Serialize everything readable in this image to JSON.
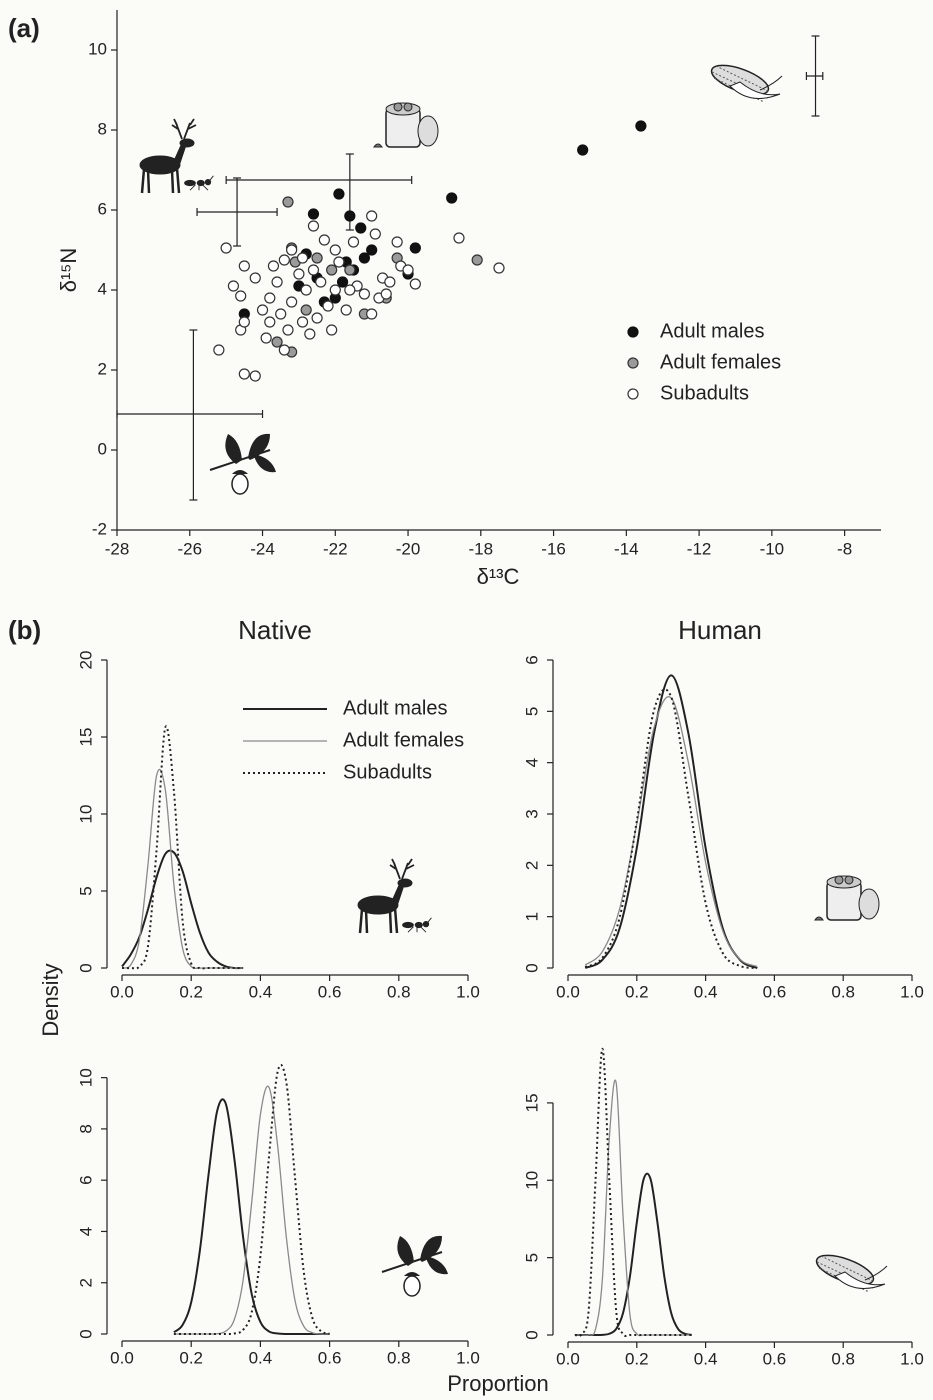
{
  "chart_data": [
    {
      "type": "scatter",
      "panel_label": "(a)",
      "x_label": "δ¹³C",
      "y_label": "δ¹⁵N",
      "xlim": [
        -28,
        -7
      ],
      "ylim": [
        -2,
        11
      ],
      "xticks": [
        -28,
        -26,
        -24,
        -22,
        -20,
        -18,
        -16,
        -14,
        -12,
        -10,
        -8
      ],
      "yticks": [
        -2,
        0,
        2,
        4,
        6,
        8,
        10
      ],
      "series": [
        {
          "name": "Adult males",
          "color": "#111111",
          "edge": "#111111",
          "x": [
            -15.2,
            -13.6,
            -18.8,
            -21.9,
            -22.6,
            -21.6,
            -21.3,
            -22.8,
            -19.8,
            -20,
            -24.5,
            -23,
            -22.3,
            -21.8,
            -21.5,
            -21.2,
            -21,
            -22,
            -21.7,
            -22.5
          ],
          "y": [
            7.5,
            8.1,
            6.3,
            6.4,
            5.9,
            5.85,
            5.55,
            4.9,
            5.05,
            4.4,
            3.4,
            4.1,
            3.7,
            4.2,
            4.5,
            4.8,
            5,
            3.8,
            4.7,
            4.3
          ]
        },
        {
          "name": "Adult females",
          "color": "#9a9a9a",
          "edge": "#333333",
          "x": [
            -23.3,
            -18.1,
            -23.2,
            -23.1,
            -22.5,
            -23.6,
            -23.2,
            -21.6,
            -20.6,
            -21.2,
            -22.1,
            -22.8,
            -20.3
          ],
          "y": [
            6.2,
            4.75,
            5.05,
            4.7,
            4.8,
            2.7,
            2.45,
            4.5,
            3.8,
            3.4,
            4.5,
            3.5,
            4.8
          ]
        },
        {
          "name": "Subadults",
          "color": "#ffffff",
          "edge": "#333333",
          "x": [
            -17.5,
            -18.6,
            -25.2,
            -24.5,
            -24.2,
            -24.6,
            -24.5,
            -24.5,
            -25,
            -24.8,
            -24.6,
            -24.2,
            -24,
            -23.8,
            -23.8,
            -23.6,
            -23.4,
            -23.5,
            -23.3,
            -23.2,
            -23,
            -22.9,
            -22.8,
            -22.6,
            -22.5,
            -22.4,
            -22.3,
            -22.2,
            -22,
            -22,
            -21.9,
            -21.7,
            -21.5,
            -21.4,
            -21.2,
            -21,
            -20.9,
            -20.7,
            -20.5,
            -20.3,
            -20.2,
            -20,
            -19.8,
            -21,
            -22.6,
            -23.2,
            -23.9,
            -23.4,
            -22.7,
            -22.1,
            -20.8,
            -21.6,
            -23.7,
            -22.9,
            -20.6
          ],
          "y": [
            4.55,
            5.3,
            2.5,
            1.9,
            1.85,
            3.0,
            3.2,
            4.6,
            5.05,
            4.1,
            3.85,
            4.3,
            3.5,
            3.2,
            3.8,
            4.2,
            4.75,
            3.4,
            3.0,
            3.7,
            4.4,
            3.2,
            4.0,
            4.5,
            3.3,
            4.2,
            5.25,
            3.6,
            4.0,
            5.0,
            4.7,
            3.5,
            5.2,
            4.1,
            3.9,
            3.4,
            5.4,
            4.3,
            4.2,
            5.2,
            4.6,
            4.5,
            4.15,
            5.85,
            5.6,
            5.0,
            2.8,
            2.5,
            2.9,
            3.0,
            3.8,
            4.0,
            4.6,
            4.8,
            3.9
          ]
        }
      ],
      "error_bars": [
        {
          "x": -24.7,
          "y": 5.95,
          "xmin": -25.8,
          "xmax": -23.6,
          "ymin": 5.1,
          "ymax": 6.8
        },
        {
          "x": -21.6,
          "y": 6.75,
          "xmin": -25,
          "xmax": -19.9,
          "ymin": 5.5,
          "ymax": 7.4
        },
        {
          "x": -8.8,
          "y": 9.35,
          "xmin": -9.05,
          "xmax": -8.6,
          "ymin": 8.35,
          "ymax": 10.35
        },
        {
          "x": -25.9,
          "y": 0.9,
          "xmin": -28,
          "xmax": -24,
          "ymin": -1.25,
          "ymax": 3.0
        }
      ]
    },
    {
      "type": "line",
      "title": "Native",
      "xlim": [
        0,
        1
      ],
      "ylim": [
        0,
        20
      ],
      "xticks": [
        {
          "value": 0,
          "label": "0.0"
        },
        0.2,
        0.4,
        0.6,
        0.8,
        {
          "value": 1,
          "label": "1.0"
        }
      ],
      "yticks": [
        0,
        5,
        10,
        15,
        20
      ],
      "x": [
        0,
        0.025,
        0.05,
        0.075,
        0.1,
        0.125,
        0.15,
        0.175,
        0.2,
        0.225,
        0.25,
        0.275,
        0.3,
        0.325,
        0.35
      ],
      "series": [
        {
          "name": "Adult males",
          "color": "#222222",
          "style": "solid",
          "width": 2,
          "values": [
            0.1,
            0.87,
            2.0,
            3.8,
            5.9,
            7.4,
            7.5,
            6.3,
            4.2,
            2.3,
            1.0,
            0.4,
            0.1,
            0,
            0
          ]
        },
        {
          "name": "Adult females",
          "color": "#8a8a8a",
          "style": "solid",
          "width": 1.3,
          "values": [
            0,
            0.2,
            1.8,
            6.7,
            12.5,
            11.6,
            5.4,
            1.3,
            0.1,
            0,
            0,
            0,
            0,
            0,
            0
          ]
        },
        {
          "name": "Subadults",
          "color": "#222222",
          "style": "dotted",
          "width": 2,
          "values": [
            0,
            0,
            0.1,
            1.4,
            7.7,
            15.6,
            11.5,
            3.1,
            0.3,
            0,
            0,
            0,
            0,
            0,
            0
          ]
        }
      ]
    },
    {
      "type": "line",
      "title": "Human",
      "xlim": [
        0,
        1
      ],
      "ylim": [
        0,
        6
      ],
      "xticks": [
        {
          "value": 0,
          "label": "0.0"
        },
        0.2,
        0.4,
        0.6,
        0.8,
        {
          "value": 1,
          "label": "1.0"
        }
      ],
      "yticks": [
        0,
        1,
        2,
        3,
        4,
        5,
        6
      ],
      "x": [
        0.05,
        0.1,
        0.15,
        0.2,
        0.25,
        0.3,
        0.35,
        0.4,
        0.45,
        0.5,
        0.55
      ],
      "series": [
        {
          "color": "#222222",
          "style": "solid",
          "width": 2,
          "values": [
            0,
            0.16,
            0.77,
            2.34,
            4.57,
            5.7,
            4.57,
            2.34,
            0.77,
            0.16,
            0
          ]
        },
        {
          "color": "#8a8a8a",
          "style": "solid",
          "width": 1.3,
          "values": [
            0.06,
            0.32,
            1.15,
            2.81,
            4.68,
            5.26,
            4.0,
            2.06,
            0.72,
            0.17,
            0.03
          ]
        },
        {
          "color": "#222222",
          "style": "dotted",
          "width": 2,
          "values": [
            0.02,
            0.2,
            0.98,
            2.86,
            5.02,
            5.28,
            3.34,
            1.27,
            0.29,
            0.04,
            0
          ]
        }
      ]
    },
    {
      "type": "line",
      "xlim": [
        0,
        1
      ],
      "ylim": [
        0,
        11
      ],
      "xticks": [
        {
          "value": 0,
          "label": "0.0"
        },
        0.2,
        0.4,
        0.6,
        0.8,
        {
          "value": 1,
          "label": "1.0"
        }
      ],
      "yticks": [
        0,
        2,
        4,
        6,
        8,
        10
      ],
      "x": [
        0.15,
        0.175,
        0.2,
        0.225,
        0.25,
        0.275,
        0.3,
        0.325,
        0.35,
        0.375,
        0.4,
        0.425,
        0.45,
        0.475,
        0.5,
        0.525,
        0.55,
        0.575,
        0.6
      ],
      "series": [
        {
          "color": "#222222",
          "style": "solid",
          "width": 2,
          "values": [
            0.07,
            0.35,
            1.24,
            3.25,
            6.2,
            8.7,
            8.98,
            6.8,
            3.78,
            1.55,
            0.47,
            0.1,
            0.02,
            0,
            0,
            0,
            0,
            0,
            0
          ]
        },
        {
          "color": "#8a8a8a",
          "style": "solid",
          "width": 1.3,
          "values": [
            0,
            0,
            0,
            0,
            0,
            0.01,
            0.11,
            0.58,
            2.1,
            5.15,
            8.56,
            9.62,
            7.32,
            3.77,
            1.31,
            0.31,
            0.05,
            0,
            0
          ]
        },
        {
          "color": "#222222",
          "style": "dotted",
          "width": 2,
          "values": [
            0,
            0,
            0,
            0,
            0,
            0,
            0,
            0.02,
            0.16,
            0.86,
            3.04,
            6.93,
            10.24,
            9.81,
            6.1,
            2.46,
            0.64,
            0.11,
            0.01
          ]
        }
      ]
    },
    {
      "type": "line",
      "xlim": [
        0,
        1
      ],
      "ylim": [
        0,
        19
      ],
      "xticks": [
        {
          "value": 0,
          "label": "0.0"
        },
        0.2,
        0.4,
        0.6,
        0.8,
        {
          "value": 1,
          "label": "1.0"
        }
      ],
      "yticks": [
        0,
        5,
        10,
        15
      ],
      "x": [
        0.02,
        0.04,
        0.06,
        0.08,
        0.1,
        0.12,
        0.14,
        0.16,
        0.18,
        0.2,
        0.22,
        0.24,
        0.26,
        0.28,
        0.3,
        0.32,
        0.34,
        0.36
      ],
      "series": [
        {
          "color": "#222222",
          "style": "solid",
          "width": 2,
          "values": [
            0,
            0,
            0,
            0,
            0.01,
            0.08,
            0.39,
            1.42,
            3.78,
            7.27,
            10.08,
            10.08,
            7.27,
            3.78,
            1.42,
            0.39,
            0.08,
            0.01
          ]
        },
        {
          "color": "#8a8a8a",
          "style": "solid",
          "width": 1.3,
          "values": [
            0,
            0,
            0.01,
            0.38,
            3.63,
            12.7,
            16.3,
            7.69,
            1.33,
            0.08,
            0,
            0,
            0,
            0,
            0,
            0,
            0,
            0
          ]
        },
        {
          "color": "#222222",
          "style": "dotted",
          "width": 2,
          "values": [
            0,
            0.07,
            1.57,
            10.0,
            18.5,
            10.0,
            1.57,
            0.07,
            0,
            0,
            0,
            0,
            0,
            0,
            0,
            0,
            0,
            0
          ]
        }
      ]
    }
  ],
  "panel_b": {
    "label": "(b)",
    "y_label": "Density",
    "x_label": "Proportion"
  }
}
